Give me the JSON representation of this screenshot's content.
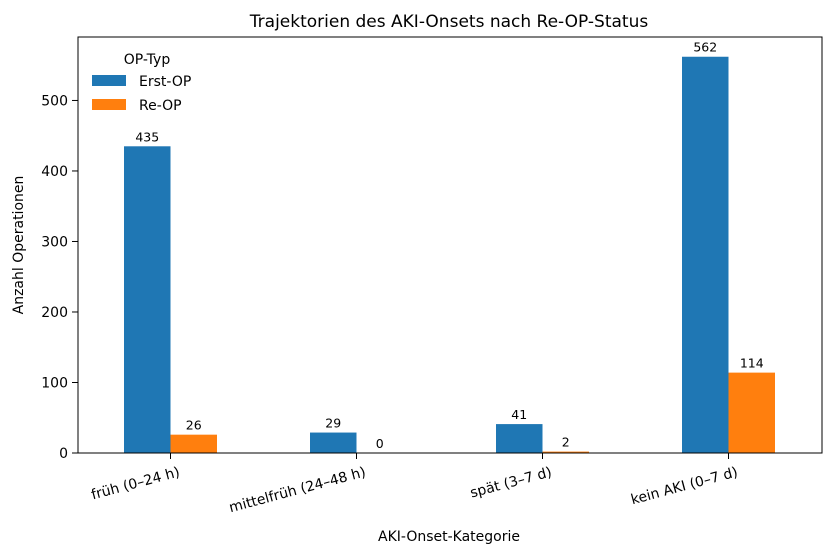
{
  "chart_data": {
    "type": "bar",
    "title": "Trajektorien des AKI-Onsets nach Re-OP-Status",
    "xlabel": "AKI-Onset-Kategorie",
    "ylabel": "Anzahl Operationen",
    "categories": [
      "früh (0–24 h)",
      "mittelfrüh (24–48 h)",
      "spät (3–7 d)",
      "kein AKI (0–7 d)"
    ],
    "series": [
      {
        "name": "Erst-OP",
        "values": [
          435,
          29,
          41,
          562
        ],
        "color": "#1f77b4"
      },
      {
        "name": "Re-OP",
        "values": [
          26,
          0,
          2,
          114
        ],
        "color": "#ff7f0e"
      }
    ],
    "ylim": [
      0,
      590
    ],
    "yticks": [
      0,
      100,
      200,
      300,
      400,
      500
    ],
    "legend": {
      "title": "OP-Typ",
      "placement": "top-left"
    },
    "grid": false
  }
}
